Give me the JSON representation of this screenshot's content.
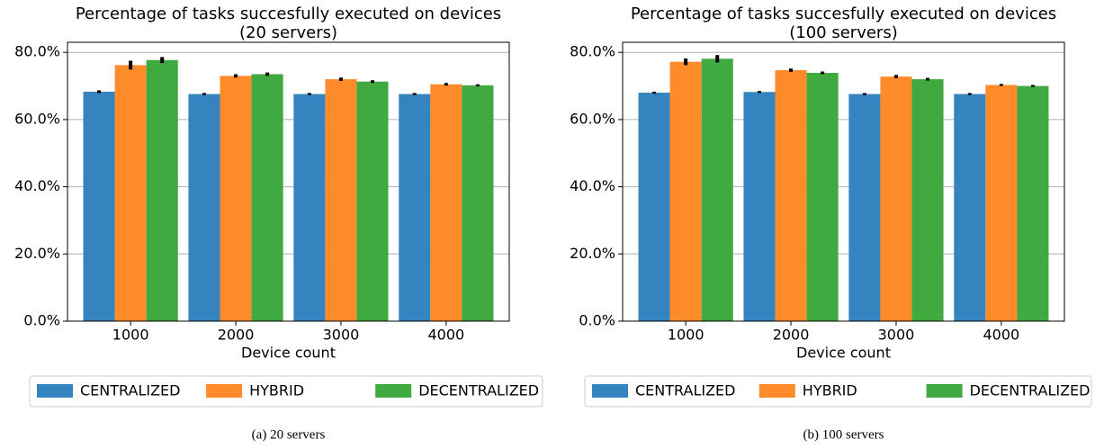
{
  "chart_data": [
    {
      "type": "bar",
      "title": [
        "Percentage of tasks succesfully executed on devices",
        "(20 servers)"
      ],
      "x_label": "Device count",
      "caption": "(a) 20 servers",
      "categories": [
        "1000",
        "2000",
        "3000",
        "4000"
      ],
      "series": [
        {
          "name": "CENTRALIZED",
          "color": "#3584c0",
          "values": [
            68.3,
            67.6,
            67.6,
            67.6
          ],
          "errors": [
            0.4,
            0.3,
            0.3,
            0.3
          ]
        },
        {
          "name": "HYBRID",
          "color": "#fe8b2a",
          "values": [
            76.2,
            73.0,
            72.0,
            70.5
          ],
          "errors": [
            1.3,
            0.5,
            0.5,
            0.4
          ]
        },
        {
          "name": "DECENTRALIZED",
          "color": "#40a940",
          "values": [
            77.7,
            73.5,
            71.3,
            70.2
          ],
          "errors": [
            0.9,
            0.5,
            0.4,
            0.3
          ]
        }
      ],
      "ylim": [
        0,
        83
      ],
      "yticks": [
        {
          "value": 0,
          "label": "0.0%"
        },
        {
          "value": 20,
          "label": "20.0%"
        },
        {
          "value": 40,
          "label": "40.0%"
        },
        {
          "value": 60,
          "label": "60.0%"
        },
        {
          "value": 80,
          "label": "80.0%"
        }
      ],
      "grid": true,
      "legend": "below"
    },
    {
      "type": "bar",
      "title": [
        "Percentage of tasks succesfully executed on devices",
        "(100 servers)"
      ],
      "x_label": "Device count",
      "caption": "(b) 100 servers",
      "categories": [
        "1000",
        "2000",
        "3000",
        "4000"
      ],
      "series": [
        {
          "name": "CENTRALIZED",
          "color": "#3584c0",
          "values": [
            68.0,
            68.2,
            67.6,
            67.6
          ],
          "errors": [
            0.3,
            0.3,
            0.3,
            0.3
          ]
        },
        {
          "name": "HYBRID",
          "color": "#fe8b2a",
          "values": [
            77.2,
            74.7,
            72.8,
            70.3
          ],
          "errors": [
            1.0,
            0.5,
            0.5,
            0.3
          ]
        },
        {
          "name": "DECENTRALIZED",
          "color": "#40a940",
          "values": [
            78.1,
            73.9,
            72.0,
            70.0
          ],
          "errors": [
            1.1,
            0.4,
            0.4,
            0.3
          ]
        }
      ],
      "ylim": [
        0,
        83
      ],
      "yticks": [
        {
          "value": 0,
          "label": "0.0%"
        },
        {
          "value": 20,
          "label": "20.0%"
        },
        {
          "value": 40,
          "label": "40.0%"
        },
        {
          "value": 60,
          "label": "60.0%"
        },
        {
          "value": 80,
          "label": "80.0%"
        }
      ],
      "grid": true,
      "legend": "below"
    }
  ]
}
